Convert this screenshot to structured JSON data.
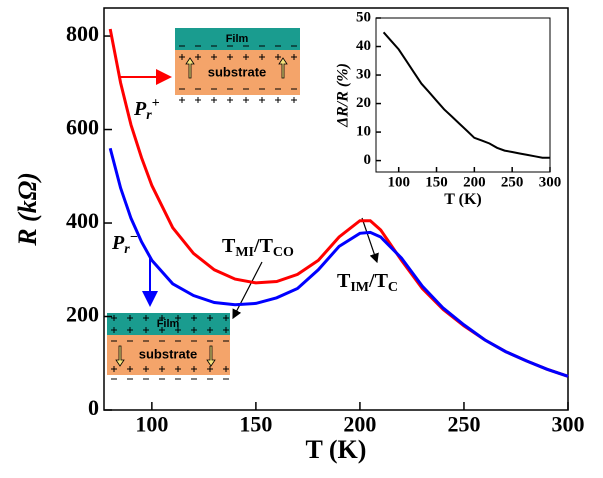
{
  "chart_data": [
    {
      "type": "line",
      "xlabel": "T (K)",
      "ylabel": "R (kΩ)",
      "xlim": [
        77,
        300
      ],
      "ylim": [
        0,
        860
      ],
      "xticks": [
        100,
        150,
        200,
        250,
        300
      ],
      "yticks": [
        0,
        200,
        400,
        600,
        800
      ],
      "x": [
        80,
        85,
        90,
        95,
        100,
        110,
        120,
        130,
        140,
        150,
        160,
        170,
        180,
        190,
        200,
        205,
        210,
        220,
        230,
        240,
        250,
        260,
        270,
        280,
        290,
        300
      ],
      "series": [
        {
          "color": "#ff0000",
          "values": [
            815,
            700,
            610,
            540,
            480,
            390,
            335,
            300,
            280,
            272,
            275,
            290,
            320,
            370,
            405,
            405,
            385,
            320,
            260,
            215,
            180,
            150,
            125,
            105,
            87,
            72
          ]
        },
        {
          "color": "#0000ff",
          "values": [
            560,
            475,
            410,
            360,
            320,
            270,
            245,
            230,
            225,
            228,
            240,
            260,
            300,
            350,
            378,
            380,
            370,
            325,
            265,
            218,
            182,
            150,
            125,
            105,
            87,
            72
          ]
        }
      ],
      "annotations": [
        [
          "P",
          "r",
          "+"
        ],
        [
          "P",
          "r",
          "−"
        ],
        [
          "T",
          "MI",
          "/T",
          "CO"
        ],
        [
          "T",
          "IM",
          "/T",
          "C"
        ]
      ],
      "diagram_labels": [
        "Film",
        "substrate",
        "Film",
        "substrate"
      ]
    },
    {
      "type": "line",
      "xlabel": "T (K)",
      "ylabel": "ΔR/R (%)",
      "xlim": [
        70,
        300
      ],
      "ylim": [
        -4,
        50
      ],
      "xticks": [
        100,
        150,
        200,
        250,
        300
      ],
      "yticks": [
        0,
        10,
        20,
        30,
        40,
        50
      ],
      "x": [
        80,
        90,
        100,
        110,
        120,
        130,
        140,
        150,
        160,
        170,
        180,
        190,
        200,
        210,
        220,
        230,
        240,
        250,
        260,
        270,
        280,
        290,
        300
      ],
      "series": [
        {
          "color": "#000000",
          "values": [
            45,
            42,
            39,
            35,
            31,
            27,
            24,
            21,
            18,
            15.5,
            13,
            10.5,
            8,
            7,
            6,
            4.5,
            3.5,
            3,
            2.5,
            2,
            1.5,
            1,
            1
          ]
        }
      ]
    }
  ]
}
